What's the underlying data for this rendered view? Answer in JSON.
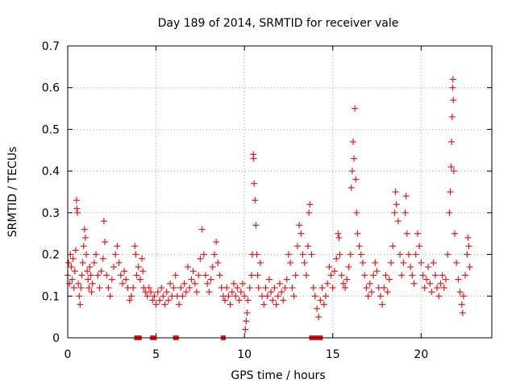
{
  "chart_data": {
    "type": "scatter",
    "title": "Day 189 of 2014, SRMTID for receiver vale",
    "xlabel": "GPS time / hours",
    "ylabel": "SRMTID / TECUs",
    "xlim": [
      0,
      24
    ],
    "ylim": [
      0,
      0.7
    ],
    "xticks": [
      0,
      5,
      10,
      15,
      20
    ],
    "yticks": [
      0,
      0.1,
      0.2,
      0.3,
      0.4,
      0.5,
      0.6,
      0.7
    ],
    "grid": true,
    "marker": "plus",
    "series": [
      {
        "name": "SRMTID",
        "color": "#e41a1c",
        "points": [
          [
            0.0,
            0.15
          ],
          [
            0.05,
            0.18
          ],
          [
            0.1,
            0.13
          ],
          [
            0.15,
            0.2
          ],
          [
            0.2,
            0.17
          ],
          [
            0.25,
            0.14
          ],
          [
            0.3,
            0.19
          ],
          [
            0.35,
            0.12
          ],
          [
            0.4,
            0.16
          ],
          [
            0.45,
            0.21
          ],
          [
            0.5,
            0.33
          ],
          [
            0.52,
            0.31
          ],
          [
            0.55,
            0.3
          ],
          [
            0.6,
            0.13
          ],
          [
            0.65,
            0.1
          ],
          [
            0.7,
            0.08
          ],
          [
            0.75,
            0.12
          ],
          [
            0.8,
            0.15
          ],
          [
            0.85,
            0.18
          ],
          [
            0.9,
            0.22
          ],
          [
            0.95,
            0.26
          ],
          [
            1.0,
            0.24
          ],
          [
            1.05,
            0.2
          ],
          [
            1.1,
            0.16
          ],
          [
            1.15,
            0.14
          ],
          [
            1.2,
            0.12
          ],
          [
            1.25,
            0.17
          ],
          [
            1.3,
            0.15
          ],
          [
            1.35,
            0.11
          ],
          [
            1.4,
            0.13
          ],
          [
            1.5,
            0.18
          ],
          [
            1.6,
            0.2
          ],
          [
            1.7,
            0.15
          ],
          [
            1.8,
            0.12
          ],
          [
            1.9,
            0.16
          ],
          [
            2.0,
            0.19
          ],
          [
            2.05,
            0.28
          ],
          [
            2.1,
            0.23
          ],
          [
            2.2,
            0.15
          ],
          [
            2.3,
            0.12
          ],
          [
            2.4,
            0.1
          ],
          [
            2.5,
            0.14
          ],
          [
            2.6,
            0.17
          ],
          [
            2.7,
            0.2
          ],
          [
            2.8,
            0.22
          ],
          [
            2.9,
            0.18
          ],
          [
            3.0,
            0.15
          ],
          [
            3.1,
            0.13
          ],
          [
            3.2,
            0.16
          ],
          [
            3.3,
            0.14
          ],
          [
            3.4,
            0.12
          ],
          [
            3.5,
            0.09
          ],
          [
            3.6,
            0.1
          ],
          [
            3.7,
            0.12
          ],
          [
            3.8,
            0.22
          ],
          [
            3.85,
            0.2
          ],
          [
            3.9,
            0.15
          ],
          [
            4.0,
            0.17
          ],
          [
            4.1,
            0.14
          ],
          [
            4.2,
            0.19
          ],
          [
            4.25,
            0.16
          ],
          [
            4.3,
            0.12
          ],
          [
            4.4,
            0.11
          ],
          [
            4.5,
            0.1
          ],
          [
            4.6,
            0.12
          ],
          [
            4.7,
            0.11
          ],
          [
            4.8,
            0.09
          ],
          [
            4.9,
            0.1
          ],
          [
            5.0,
            0.08
          ],
          [
            5.1,
            0.11
          ],
          [
            5.2,
            0.09
          ],
          [
            5.3,
            0.12
          ],
          [
            5.4,
            0.1
          ],
          [
            5.5,
            0.08
          ],
          [
            5.6,
            0.11
          ],
          [
            5.7,
            0.09
          ],
          [
            5.8,
            0.13
          ],
          [
            5.9,
            0.1
          ],
          [
            6.0,
            0.12
          ],
          [
            6.1,
            0.15
          ],
          [
            6.2,
            0.1
          ],
          [
            6.3,
            0.08
          ],
          [
            6.4,
            0.12
          ],
          [
            6.5,
            0.1
          ],
          [
            6.6,
            0.13
          ],
          [
            6.7,
            0.11
          ],
          [
            6.8,
            0.17
          ],
          [
            6.9,
            0.12
          ],
          [
            7.0,
            0.14
          ],
          [
            7.1,
            0.16
          ],
          [
            7.2,
            0.13
          ],
          [
            7.3,
            0.11
          ],
          [
            7.4,
            0.15
          ],
          [
            7.5,
            0.19
          ],
          [
            7.6,
            0.26
          ],
          [
            7.7,
            0.2
          ],
          [
            7.8,
            0.15
          ],
          [
            7.9,
            0.13
          ],
          [
            8.0,
            0.11
          ],
          [
            8.1,
            0.14
          ],
          [
            8.2,
            0.17
          ],
          [
            8.3,
            0.2
          ],
          [
            8.4,
            0.23
          ],
          [
            8.5,
            0.18
          ],
          [
            8.6,
            0.15
          ],
          [
            8.7,
            0.12
          ],
          [
            8.8,
            0.1
          ],
          [
            8.9,
            0.09
          ],
          [
            9.0,
            0.12
          ],
          [
            9.1,
            0.1
          ],
          [
            9.2,
            0.08
          ],
          [
            9.3,
            0.11
          ],
          [
            9.4,
            0.13
          ],
          [
            9.5,
            0.1
          ],
          [
            9.6,
            0.12
          ],
          [
            9.7,
            0.09
          ],
          [
            9.8,
            0.11
          ],
          [
            9.9,
            0.13
          ],
          [
            10.0,
            0.1
          ],
          [
            10.05,
            0.02
          ],
          [
            10.1,
            0.04
          ],
          [
            10.15,
            0.06
          ],
          [
            10.2,
            0.09
          ],
          [
            10.3,
            0.12
          ],
          [
            10.4,
            0.15
          ],
          [
            10.45,
            0.2
          ],
          [
            10.5,
            0.44
          ],
          [
            10.52,
            0.43
          ],
          [
            10.55,
            0.37
          ],
          [
            10.6,
            0.33
          ],
          [
            10.65,
            0.27
          ],
          [
            10.7,
            0.2
          ],
          [
            10.75,
            0.15
          ],
          [
            10.8,
            0.12
          ],
          [
            10.9,
            0.18
          ],
          [
            11.0,
            0.1
          ],
          [
            11.1,
            0.08
          ],
          [
            11.2,
            0.12
          ],
          [
            11.3,
            0.1
          ],
          [
            11.4,
            0.14
          ],
          [
            11.5,
            0.11
          ],
          [
            11.6,
            0.09
          ],
          [
            11.7,
            0.12
          ],
          [
            11.8,
            0.08
          ],
          [
            11.9,
            0.1
          ],
          [
            12.0,
            0.13
          ],
          [
            12.1,
            0.11
          ],
          [
            12.2,
            0.09
          ],
          [
            12.3,
            0.12
          ],
          [
            12.4,
            0.14
          ],
          [
            12.5,
            0.2
          ],
          [
            12.6,
            0.18
          ],
          [
            12.7,
            0.12
          ],
          [
            12.8,
            0.1
          ],
          [
            12.9,
            0.15
          ],
          [
            13.0,
            0.22
          ],
          [
            13.1,
            0.27
          ],
          [
            13.2,
            0.25
          ],
          [
            13.3,
            0.2
          ],
          [
            13.4,
            0.18
          ],
          [
            13.5,
            0.15
          ],
          [
            13.6,
            0.22
          ],
          [
            13.65,
            0.3
          ],
          [
            13.7,
            0.32
          ],
          [
            13.8,
            0.2
          ],
          [
            13.9,
            0.12
          ],
          [
            14.0,
            0.1
          ],
          [
            14.1,
            0.07
          ],
          [
            14.2,
            0.05
          ],
          [
            14.3,
            0.09
          ],
          [
            14.4,
            0.12
          ],
          [
            14.5,
            0.08
          ],
          [
            14.6,
            0.1
          ],
          [
            14.7,
            0.13
          ],
          [
            14.8,
            0.17
          ],
          [
            14.9,
            0.15
          ],
          [
            15.0,
            0.12
          ],
          [
            15.1,
            0.16
          ],
          [
            15.2,
            0.19
          ],
          [
            15.3,
            0.25
          ],
          [
            15.35,
            0.24
          ],
          [
            15.4,
            0.2
          ],
          [
            15.5,
            0.15
          ],
          [
            15.6,
            0.13
          ],
          [
            15.7,
            0.12
          ],
          [
            15.8,
            0.14
          ],
          [
            15.9,
            0.17
          ],
          [
            16.0,
            0.2
          ],
          [
            16.05,
            0.36
          ],
          [
            16.1,
            0.4
          ],
          [
            16.15,
            0.47
          ],
          [
            16.2,
            0.43
          ],
          [
            16.25,
            0.55
          ],
          [
            16.3,
            0.38
          ],
          [
            16.35,
            0.3
          ],
          [
            16.4,
            0.25
          ],
          [
            16.5,
            0.22
          ],
          [
            16.6,
            0.2
          ],
          [
            16.7,
            0.18
          ],
          [
            16.8,
            0.15
          ],
          [
            16.9,
            0.12
          ],
          [
            17.0,
            0.1
          ],
          [
            17.1,
            0.13
          ],
          [
            17.2,
            0.11
          ],
          [
            17.3,
            0.15
          ],
          [
            17.4,
            0.18
          ],
          [
            17.5,
            0.16
          ],
          [
            17.6,
            0.12
          ],
          [
            17.7,
            0.1
          ],
          [
            17.8,
            0.08
          ],
          [
            17.9,
            0.12
          ],
          [
            18.0,
            0.15
          ],
          [
            18.1,
            0.11
          ],
          [
            18.2,
            0.14
          ],
          [
            18.3,
            0.18
          ],
          [
            18.4,
            0.22
          ],
          [
            18.5,
            0.3
          ],
          [
            18.55,
            0.35
          ],
          [
            18.6,
            0.32
          ],
          [
            18.7,
            0.28
          ],
          [
            18.8,
            0.2
          ],
          [
            18.9,
            0.15
          ],
          [
            19.0,
            0.18
          ],
          [
            19.1,
            0.3
          ],
          [
            19.15,
            0.34
          ],
          [
            19.2,
            0.25
          ],
          [
            19.3,
            0.2
          ],
          [
            19.4,
            0.17
          ],
          [
            19.5,
            0.15
          ],
          [
            19.6,
            0.13
          ],
          [
            19.7,
            0.2
          ],
          [
            19.8,
            0.25
          ],
          [
            19.9,
            0.22
          ],
          [
            20.0,
            0.18
          ],
          [
            20.1,
            0.15
          ],
          [
            20.2,
            0.12
          ],
          [
            20.3,
            0.14
          ],
          [
            20.4,
            0.17
          ],
          [
            20.5,
            0.13
          ],
          [
            20.6,
            0.11
          ],
          [
            20.7,
            0.18
          ],
          [
            20.8,
            0.15
          ],
          [
            20.9,
            0.12
          ],
          [
            21.0,
            0.1
          ],
          [
            21.1,
            0.13
          ],
          [
            21.2,
            0.15
          ],
          [
            21.3,
            0.12
          ],
          [
            21.4,
            0.14
          ],
          [
            21.5,
            0.2
          ],
          [
            21.6,
            0.3
          ],
          [
            21.65,
            0.35
          ],
          [
            21.7,
            0.41
          ],
          [
            21.72,
            0.47
          ],
          [
            21.75,
            0.53
          ],
          [
            21.78,
            0.6
          ],
          [
            21.8,
            0.62
          ],
          [
            21.82,
            0.57
          ],
          [
            21.85,
            0.4
          ],
          [
            21.9,
            0.25
          ],
          [
            22.0,
            0.18
          ],
          [
            22.1,
            0.14
          ],
          [
            22.2,
            0.11
          ],
          [
            22.3,
            0.08
          ],
          [
            22.35,
            0.06
          ],
          [
            22.4,
            0.1
          ],
          [
            22.5,
            0.15
          ],
          [
            22.6,
            0.2
          ],
          [
            22.65,
            0.24
          ],
          [
            22.7,
            0.22
          ],
          [
            22.75,
            0.17
          ]
        ]
      }
    ],
    "gap_markers": [
      3.9,
      4.0,
      4.05,
      4.8,
      4.9,
      6.1,
      6.15,
      8.8,
      13.8,
      13.9,
      14.0,
      14.1,
      14.2,
      14.3
    ]
  }
}
